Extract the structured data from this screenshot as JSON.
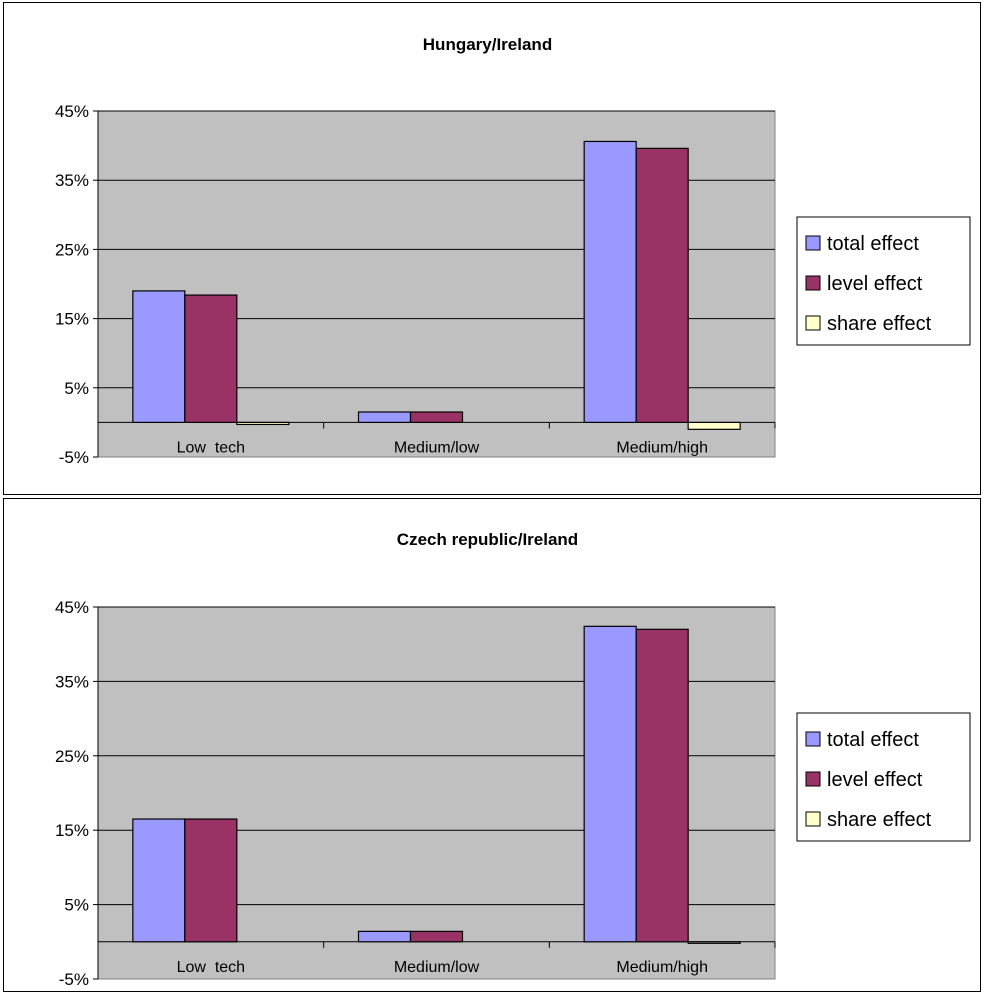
{
  "chart_data": [
    {
      "type": "bar",
      "title": "Hungary/Ireland",
      "categories": [
        "Low  tech",
        "Medium/low",
        "Medium/high"
      ],
      "y_tick_labels": [
        "45%",
        "35%",
        "25%",
        "15%",
        "5%",
        "-5%"
      ],
      "ylim": [
        -0.05,
        0.45
      ],
      "grid": true,
      "legend_position": "right",
      "series": [
        {
          "name": "total effect",
          "color": "#9999ff",
          "values": [
            0.19,
            0.015,
            0.406
          ]
        },
        {
          "name": "level effect",
          "color": "#993366",
          "values": [
            0.184,
            0.015,
            0.396
          ]
        },
        {
          "name": "share effect",
          "color": "#ffffcc",
          "values": [
            -0.003,
            0.0,
            -0.01
          ]
        }
      ]
    },
    {
      "type": "bar",
      "title": "Czech republic/Ireland",
      "categories": [
        "Low  tech",
        "Medium/low",
        "Medium/high"
      ],
      "y_tick_labels": [
        "45%",
        "35%",
        "25%",
        "15%",
        "5%",
        "-5%"
      ],
      "ylim": [
        -0.05,
        0.45
      ],
      "grid": true,
      "legend_position": "right",
      "series": [
        {
          "name": "total effect",
          "color": "#9999ff",
          "values": [
            0.165,
            0.014,
            0.424
          ]
        },
        {
          "name": "level effect",
          "color": "#993366",
          "values": [
            0.165,
            0.014,
            0.42
          ]
        },
        {
          "name": "share effect",
          "color": "#ffffcc",
          "values": [
            0.0,
            0.0,
            -0.001
          ]
        }
      ]
    }
  ]
}
